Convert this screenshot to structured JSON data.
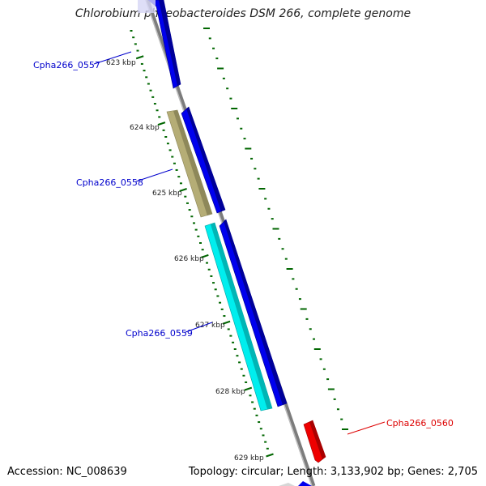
{
  "title": "Chlorobium phaeobacteroides DSM 266, complete genome",
  "accession": "Accession: NC_008639",
  "summary": "Topology: circular; Length: 3,133,902 bp; Genes: 2,705",
  "ticks": [
    "623 kbp",
    "624 kbp",
    "625 kbp",
    "626 kbp",
    "627 kbp",
    "628 kbp",
    "629 kbp"
  ],
  "genes": [
    {
      "name": "Cpha266_0557",
      "color": "#0000cc"
    },
    {
      "name": "Cpha266_0558",
      "color": "#0000cc"
    },
    {
      "name": "Cpha266_0559",
      "color": "#0000cc"
    },
    {
      "name": "Cpha266_0560",
      "color": "#dd0000"
    }
  ],
  "colors": {
    "forward_cds": "#0000ee",
    "reverse_cds": "#ee0000",
    "tan_feature": "#b5ad76",
    "cyan_feature": "#00eeee",
    "backbone": "#888888",
    "gc_ticks": "#006600"
  }
}
